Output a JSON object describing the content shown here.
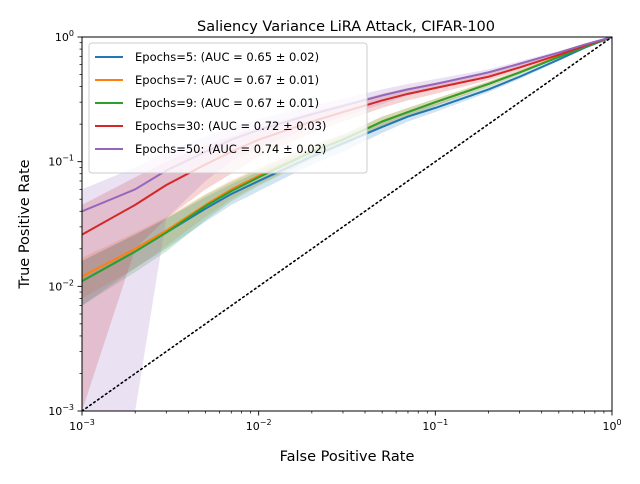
{
  "chart_data": {
    "type": "line",
    "title": "Saliency Variance LiRA Attack, CIFAR-100",
    "xlabel": "False Positive Rate",
    "ylabel": "True Positive Rate",
    "xscale": "log",
    "yscale": "log",
    "xlim": [
      0.001,
      1
    ],
    "ylim": [
      0.001,
      1
    ],
    "grid": false,
    "legend_position": "top-left",
    "x_ticks": [
      {
        "value": 0.001,
        "base": "10",
        "exp": "−3"
      },
      {
        "value": 0.01,
        "base": "10",
        "exp": "−2"
      },
      {
        "value": 0.1,
        "base": "10",
        "exp": "−1"
      },
      {
        "value": 1,
        "base": "10",
        "exp": "0"
      }
    ],
    "y_ticks": [
      {
        "value": 0.001,
        "base": "10",
        "exp": "−3"
      },
      {
        "value": 0.01,
        "base": "10",
        "exp": "−2"
      },
      {
        "value": 0.1,
        "base": "10",
        "exp": "−1"
      },
      {
        "value": 1,
        "base": "10",
        "exp": "0"
      }
    ],
    "reference_line": {
      "x": [
        0.001,
        1
      ],
      "y": [
        0.001,
        1
      ],
      "color": "#000000",
      "style": "dotted"
    },
    "series": [
      {
        "name": "Epochs=5: (AUC = 0.65 ± 0.02)",
        "color": "#1f77b4",
        "x": [
          0.001,
          0.002,
          0.003,
          0.005,
          0.007,
          0.01,
          0.02,
          0.03,
          0.05,
          0.07,
          0.1,
          0.2,
          0.3,
          0.5,
          0.7,
          1.0
        ],
        "y": [
          0.011,
          0.019,
          0.027,
          0.042,
          0.055,
          0.07,
          0.11,
          0.14,
          0.19,
          0.23,
          0.27,
          0.38,
          0.48,
          0.66,
          0.82,
          1.0
        ],
        "y_lower": [
          0.007,
          0.014,
          0.02,
          0.033,
          0.045,
          0.058,
          0.095,
          0.12,
          0.17,
          0.21,
          0.25,
          0.36,
          0.46,
          0.64,
          0.81,
          1.0
        ],
        "y_upper": [
          0.016,
          0.026,
          0.035,
          0.052,
          0.066,
          0.083,
          0.125,
          0.16,
          0.21,
          0.25,
          0.29,
          0.4,
          0.5,
          0.68,
          0.83,
          1.0
        ]
      },
      {
        "name": "Epochs=7: (AUC = 0.67 ± 0.01)",
        "color": "#ff7f0e",
        "x": [
          0.001,
          0.002,
          0.003,
          0.005,
          0.007,
          0.01,
          0.02,
          0.03,
          0.05,
          0.07,
          0.1,
          0.2,
          0.3,
          0.5,
          0.7,
          1.0
        ],
        "y": [
          0.012,
          0.02,
          0.028,
          0.045,
          0.06,
          0.077,
          0.12,
          0.15,
          0.21,
          0.25,
          0.3,
          0.42,
          0.52,
          0.7,
          0.84,
          1.0
        ],
        "y_lower": [
          0.008,
          0.014,
          0.021,
          0.036,
          0.05,
          0.066,
          0.105,
          0.135,
          0.19,
          0.23,
          0.28,
          0.4,
          0.5,
          0.69,
          0.83,
          1.0
        ],
        "y_upper": [
          0.017,
          0.027,
          0.036,
          0.055,
          0.071,
          0.089,
          0.135,
          0.165,
          0.23,
          0.27,
          0.32,
          0.44,
          0.54,
          0.71,
          0.85,
          1.0
        ]
      },
      {
        "name": "Epochs=9: (AUC = 0.67 ± 0.01)",
        "color": "#2ca02c",
        "x": [
          0.001,
          0.002,
          0.003,
          0.005,
          0.007,
          0.01,
          0.02,
          0.03,
          0.05,
          0.07,
          0.1,
          0.2,
          0.3,
          0.5,
          0.7,
          1.0
        ],
        "y": [
          0.011,
          0.019,
          0.027,
          0.044,
          0.058,
          0.075,
          0.12,
          0.15,
          0.21,
          0.25,
          0.3,
          0.42,
          0.52,
          0.69,
          0.83,
          1.0
        ],
        "y_lower": [
          0.007,
          0.013,
          0.019,
          0.034,
          0.048,
          0.064,
          0.105,
          0.135,
          0.19,
          0.23,
          0.28,
          0.4,
          0.5,
          0.68,
          0.82,
          1.0
        ],
        "y_upper": [
          0.016,
          0.026,
          0.035,
          0.054,
          0.069,
          0.087,
          0.135,
          0.165,
          0.23,
          0.27,
          0.32,
          0.44,
          0.54,
          0.7,
          0.84,
          1.0
        ]
      },
      {
        "name": "Epochs=30: (AUC = 0.72 ± 0.03)",
        "color": "#d62728",
        "x": [
          0.001,
          0.002,
          0.003,
          0.005,
          0.007,
          0.01,
          0.02,
          0.03,
          0.05,
          0.07,
          0.1,
          0.2,
          0.3,
          0.5,
          0.7,
          1.0
        ],
        "y": [
          0.026,
          0.045,
          0.065,
          0.095,
          0.12,
          0.15,
          0.21,
          0.25,
          0.31,
          0.35,
          0.39,
          0.48,
          0.57,
          0.72,
          0.85,
          1.0
        ],
        "y_lower": [
          0.001,
          0.02,
          0.035,
          0.06,
          0.08,
          0.11,
          0.17,
          0.21,
          0.27,
          0.31,
          0.35,
          0.45,
          0.54,
          0.7,
          0.84,
          1.0
        ],
        "y_upper": [
          0.045,
          0.075,
          0.1,
          0.135,
          0.16,
          0.19,
          0.25,
          0.29,
          0.35,
          0.39,
          0.43,
          0.51,
          0.6,
          0.74,
          0.86,
          1.0
        ]
      },
      {
        "name": "Epochs=50: (AUC = 0.74 ± 0.02)",
        "color": "#9467bd",
        "x": [
          0.001,
          0.002,
          0.003,
          0.005,
          0.007,
          0.01,
          0.02,
          0.03,
          0.05,
          0.07,
          0.1,
          0.2,
          0.3,
          0.5,
          0.7,
          1.0
        ],
        "y": [
          0.04,
          0.06,
          0.085,
          0.12,
          0.15,
          0.18,
          0.24,
          0.28,
          0.34,
          0.38,
          0.42,
          0.52,
          0.61,
          0.75,
          0.87,
          1.0
        ],
        "y_lower": [
          0.001,
          0.001,
          0.035,
          0.07,
          0.1,
          0.13,
          0.19,
          0.23,
          0.29,
          0.34,
          0.38,
          0.49,
          0.58,
          0.73,
          0.86,
          1.0
        ],
        "y_upper": [
          0.06,
          0.09,
          0.12,
          0.16,
          0.19,
          0.22,
          0.28,
          0.32,
          0.38,
          0.42,
          0.46,
          0.55,
          0.64,
          0.77,
          0.88,
          1.0
        ]
      }
    ]
  }
}
